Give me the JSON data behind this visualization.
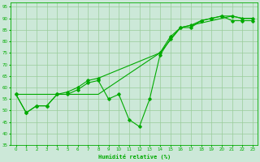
{
  "xlabel": "Humidité relative (%)",
  "bg_color": "#cce8d8",
  "grid_color": "#99cc99",
  "line_color": "#00aa00",
  "xlim": [
    -0.5,
    23.5
  ],
  "ylim": [
    35,
    97
  ],
  "yticks": [
    35,
    40,
    45,
    50,
    55,
    60,
    65,
    70,
    75,
    80,
    85,
    90,
    95
  ],
  "xticks": [
    0,
    1,
    2,
    3,
    4,
    5,
    6,
    7,
    8,
    9,
    10,
    11,
    12,
    13,
    14,
    15,
    16,
    17,
    18,
    19,
    20,
    21,
    22,
    23
  ],
  "line1_x": [
    0,
    1,
    2,
    3,
    4,
    5,
    6,
    7,
    8,
    9,
    10,
    11,
    12,
    13,
    14,
    15,
    16,
    17,
    18,
    19,
    20,
    21,
    22,
    23
  ],
  "line1_y": [
    57,
    49,
    52,
    52,
    57,
    57,
    59,
    62,
    63,
    55,
    57,
    46,
    43,
    55,
    74,
    81,
    86,
    86,
    89,
    90,
    91,
    89,
    89,
    89
  ],
  "line2_x": [
    0,
    1,
    2,
    3,
    4,
    5,
    6,
    7,
    8,
    14,
    15,
    16,
    17,
    18,
    19,
    20,
    21,
    22,
    23
  ],
  "line2_y": [
    57,
    49,
    52,
    52,
    57,
    58,
    60,
    63,
    64,
    75,
    82,
    86,
    87,
    89,
    90,
    91,
    91,
    90,
    90
  ],
  "line3_x": [
    0,
    4,
    8,
    14,
    16,
    17,
    18,
    19,
    20,
    21,
    22,
    23
  ],
  "line3_y": [
    57,
    57,
    57,
    75,
    86,
    87,
    88,
    89,
    90,
    91,
    90,
    90
  ]
}
